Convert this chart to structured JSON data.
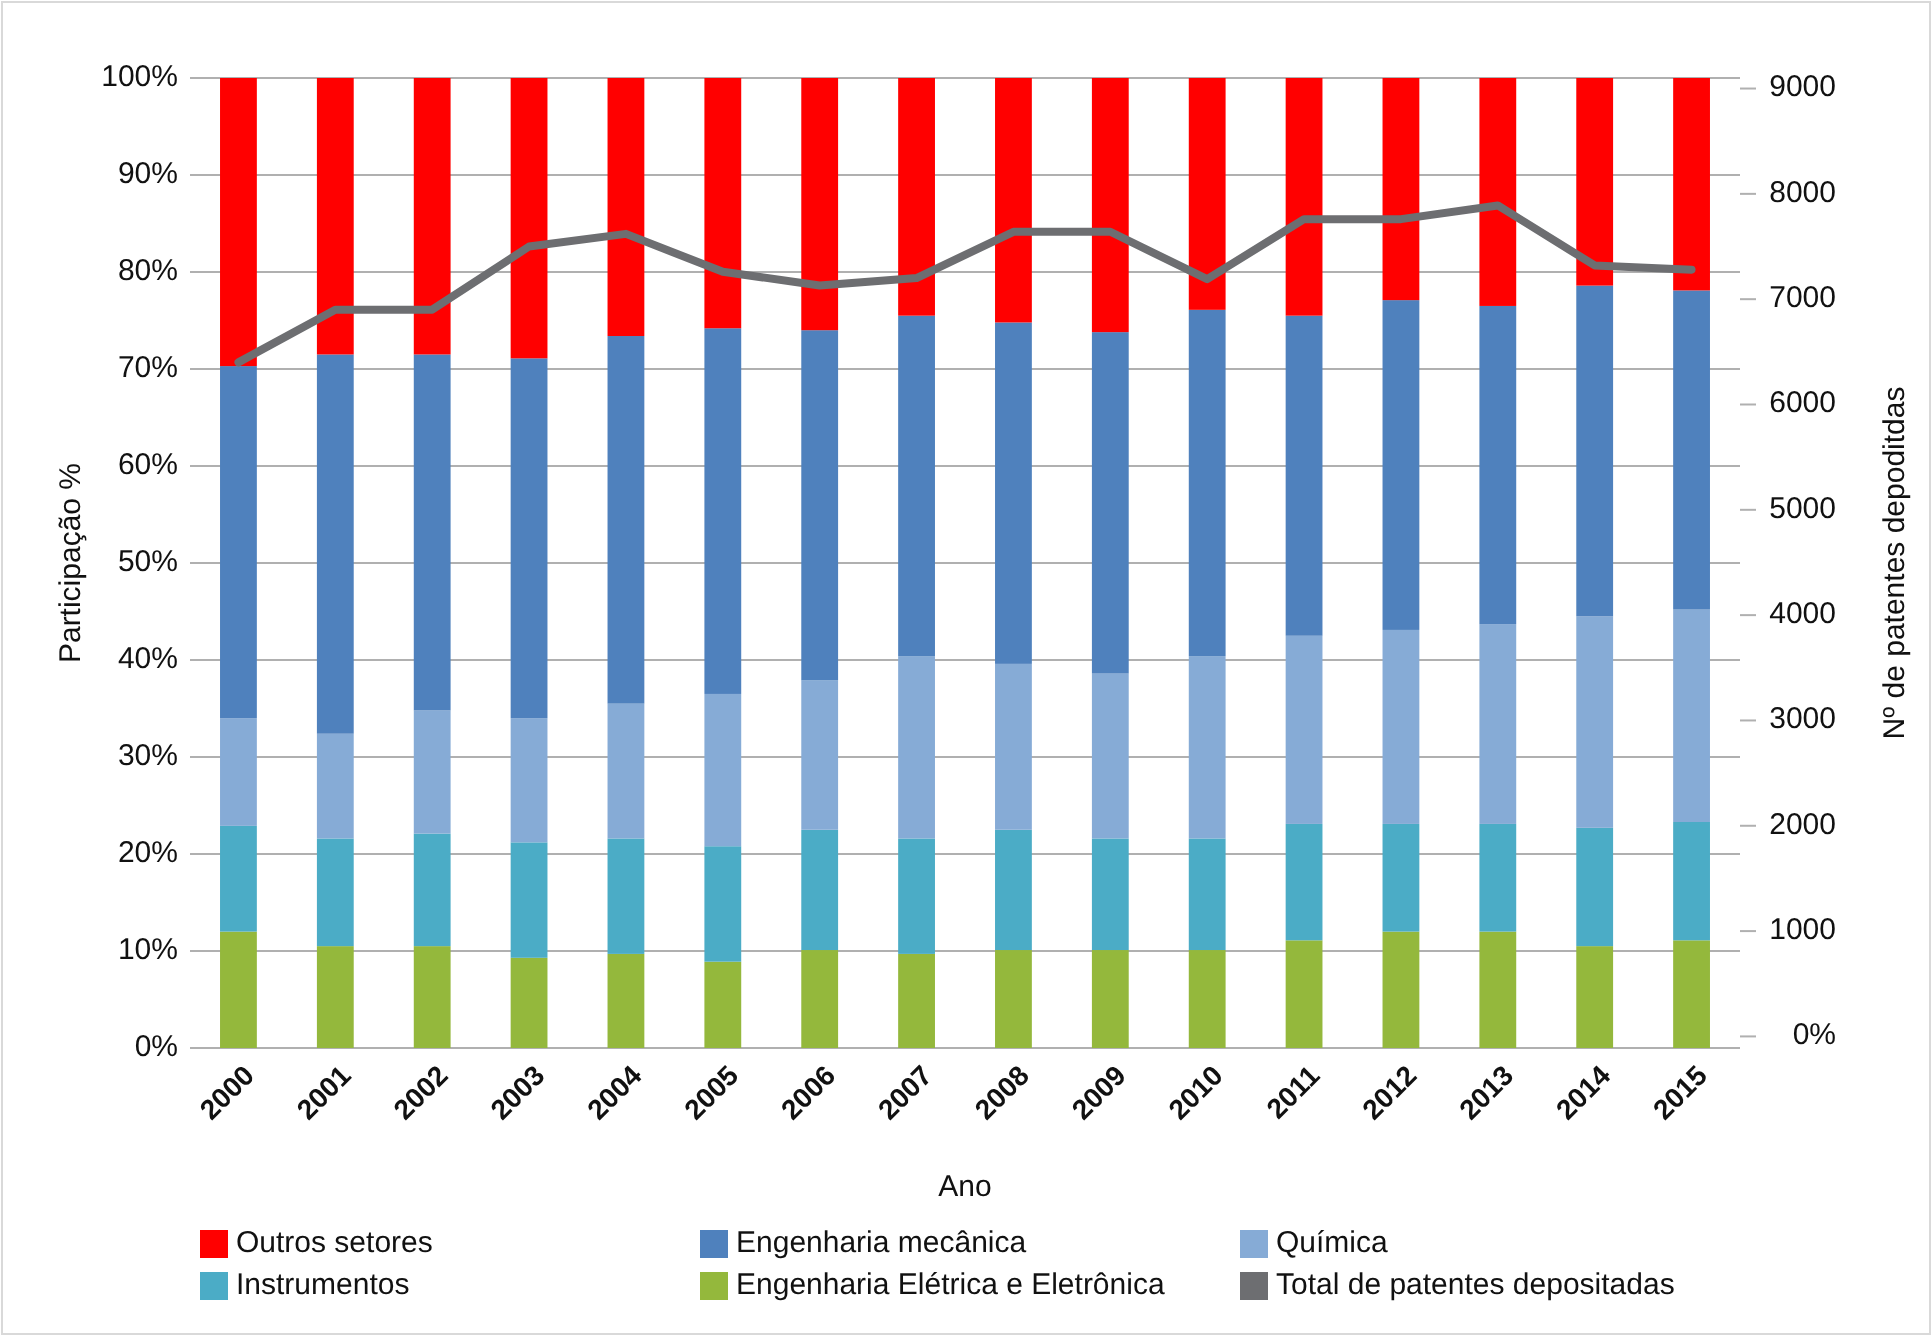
{
  "chart_data": {
    "type": "bar",
    "stacked": true,
    "xlabel": "Ano",
    "ylabel": "Participação %",
    "y2label": "Nº de patentes depoditdas",
    "categories": [
      "2000",
      "2001",
      "2002",
      "2003",
      "2004",
      "2005",
      "2006",
      "2007",
      "2008",
      "2009",
      "2010",
      "2011",
      "2012",
      "2013",
      "2014",
      "2015"
    ],
    "series": [
      {
        "name": "Engenharia Elétrica e Eletrônica",
        "color": "#94b83c",
        "values": [
          12.0,
          10.5,
          10.5,
          9.3,
          9.7,
          8.9,
          10.1,
          9.7,
          10.1,
          10.1,
          10.1,
          11.1,
          12.0,
          12.0,
          10.5,
          11.1
        ]
      },
      {
        "name": "Instrumentos",
        "color": "#4bacc6",
        "values": [
          10.9,
          11.1,
          11.6,
          11.9,
          11.9,
          11.9,
          12.4,
          11.9,
          12.4,
          11.5,
          11.5,
          12.0,
          11.1,
          11.1,
          12.2,
          12.2
        ]
      },
      {
        "name": "Química",
        "color": "#86abd6",
        "values": [
          11.1,
          10.8,
          12.7,
          12.8,
          13.9,
          15.7,
          15.4,
          18.8,
          17.1,
          17.0,
          18.8,
          19.4,
          20.0,
          20.6,
          21.8,
          21.9
        ]
      },
      {
        "name": "Engenharia mecânica",
        "color": "#4f81bd",
        "values": [
          36.3,
          39.1,
          36.7,
          37.1,
          37.9,
          37.7,
          36.1,
          35.1,
          35.2,
          35.2,
          35.7,
          33.0,
          34.0,
          32.8,
          34.1,
          32.9
        ]
      },
      {
        "name": "Outros setores",
        "color": "#ff0000",
        "values": [
          29.7,
          28.5,
          28.5,
          28.9,
          26.6,
          25.8,
          26.0,
          24.5,
          25.2,
          26.2,
          23.9,
          24.5,
          22.9,
          23.5,
          21.4,
          21.9
        ]
      },
      {
        "name": "Total de patentes depositadas",
        "type": "line",
        "axis": "y2",
        "color": "#6d6e71",
        "values": [
          6400,
          6900,
          6900,
          7500,
          7620,
          7260,
          7130,
          7200,
          7640,
          7640,
          7190,
          7760,
          7760,
          7890,
          7320,
          7280
        ]
      }
    ],
    "ylim": [
      0,
      100
    ],
    "yticks": [
      {
        "value": 0,
        "label": "0%"
      },
      {
        "value": 10,
        "label": "10%"
      },
      {
        "value": 20,
        "label": "20%"
      },
      {
        "value": 30,
        "label": "30%"
      },
      {
        "value": 40,
        "label": "40%"
      },
      {
        "value": 50,
        "label": "50%"
      },
      {
        "value": 60,
        "label": "60%"
      },
      {
        "value": 70,
        "label": "70%"
      },
      {
        "value": 80,
        "label": "80%"
      },
      {
        "value": 90,
        "label": "90%"
      },
      {
        "value": 100,
        "label": "100%"
      }
    ],
    "y2lim": [
      -110,
      9100
    ],
    "y2ticks": [
      {
        "value": 0,
        "label": "0%"
      },
      1000,
      2000,
      3000,
      4000,
      5000,
      6000,
      7000,
      8000,
      9000
    ],
    "grid": "y",
    "legend": "bottom",
    "marker": "none",
    "line_style": "solid"
  }
}
